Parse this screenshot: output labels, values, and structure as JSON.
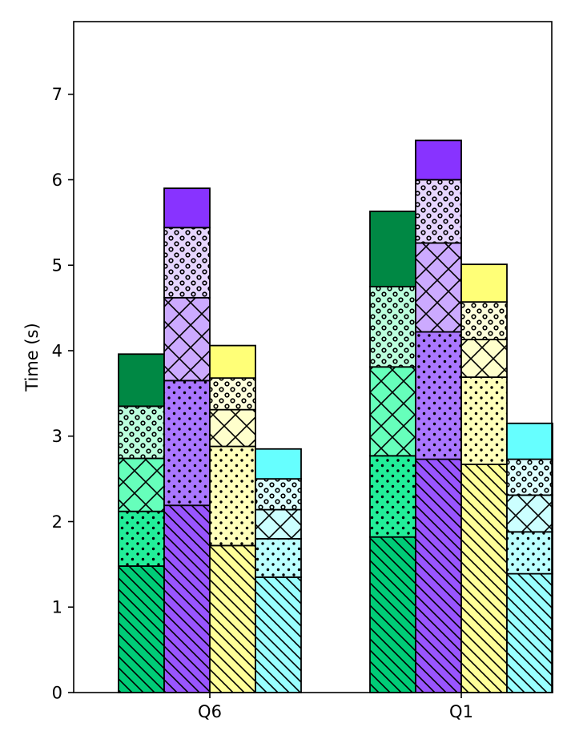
{
  "chart_data": {
    "type": "bar",
    "stacked": true,
    "title": "",
    "xlabel": "",
    "ylabel": "Time (s)",
    "ylim": [
      0,
      7.85
    ],
    "yticks": [
      0,
      1,
      2,
      3,
      4,
      5,
      6,
      7
    ],
    "categories": [
      "Q6",
      "Q1"
    ],
    "segment_patterns": [
      "diagonal",
      "dots",
      "crosshatch",
      "circles",
      "solid"
    ],
    "series": [
      {
        "name": "green",
        "colors": [
          "#00cc77",
          "#22ee99",
          "#66ffbb",
          "#bbffdd",
          "#008844"
        ],
        "segments": {
          "Q6": [
            1.48,
            0.64,
            0.62,
            0.61,
            0.61
          ],
          "Q1": [
            1.82,
            0.95,
            1.04,
            0.94,
            0.88
          ]
        }
      },
      {
        "name": "purple",
        "colors": [
          "#9955ff",
          "#aa77ff",
          "#ccaaff",
          "#e6d5ff",
          "#8833ff"
        ],
        "segments": {
          "Q6": [
            2.19,
            1.46,
            0.97,
            0.82,
            0.46
          ],
          "Q1": [
            2.73,
            1.49,
            1.04,
            0.74,
            0.46
          ]
        }
      },
      {
        "name": "yellow",
        "colors": [
          "#ffff99",
          "#ffffbb",
          "#ffffcc",
          "#ffffdd",
          "#ffff77"
        ],
        "segments": {
          "Q6": [
            1.72,
            1.16,
            0.43,
            0.37,
            0.38
          ],
          "Q1": [
            2.67,
            1.02,
            0.44,
            0.44,
            0.44
          ]
        }
      },
      {
        "name": "cyan",
        "colors": [
          "#99ffff",
          "#bbffff",
          "#ccffff",
          "#ddffff",
          "#66ffff"
        ],
        "segments": {
          "Q6": [
            1.35,
            0.45,
            0.34,
            0.36,
            0.35
          ],
          "Q1": [
            1.39,
            0.49,
            0.43,
            0.42,
            0.42
          ]
        }
      }
    ]
  }
}
